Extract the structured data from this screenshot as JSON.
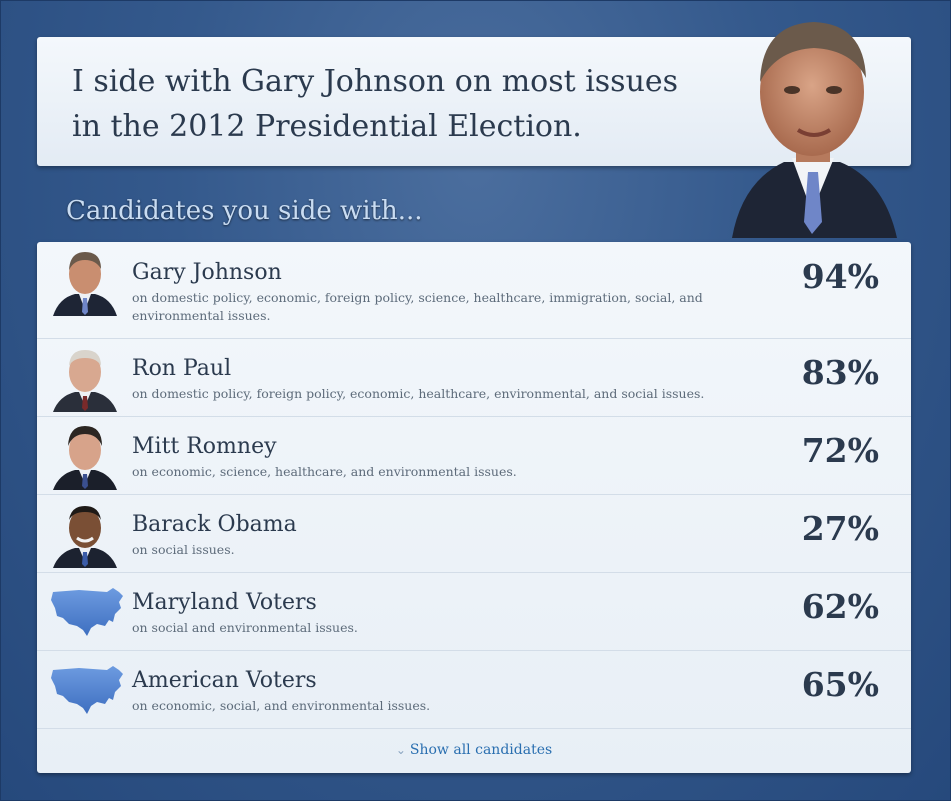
{
  "header": {
    "headline": "I side with Gary Johnson on most issues in the 2012 Presidential Election."
  },
  "section_title": "Candidates you side with...",
  "candidates": [
    {
      "name": "Gary Johnson",
      "desc": "on domestic policy, economic, foreign policy, science, healthcare, immigration, social, and environmental issues.",
      "pct": "94%",
      "icon": "portrait"
    },
    {
      "name": "Ron Paul",
      "desc": "on domestic policy, foreign policy, economic, healthcare, environmental, and social issues.",
      "pct": "83%",
      "icon": "portrait"
    },
    {
      "name": "Mitt Romney",
      "desc": "on economic, science, healthcare, and environmental issues.",
      "pct": "72%",
      "icon": "portrait"
    },
    {
      "name": "Barack Obama",
      "desc": "on social issues.",
      "pct": "27%",
      "icon": "portrait"
    },
    {
      "name": "Maryland Voters",
      "desc": "on social and environmental issues.",
      "pct": "62%",
      "icon": "us-map"
    },
    {
      "name": "American Voters",
      "desc": "on economic, social, and environmental issues.",
      "pct": "65%",
      "icon": "us-map"
    }
  ],
  "show_all": {
    "label": "Show all candidates",
    "icon": "chevron-down-icon"
  },
  "colors": {
    "accent": "#2a6fb0",
    "text": "#2b3a4e",
    "background": "#34598c"
  }
}
